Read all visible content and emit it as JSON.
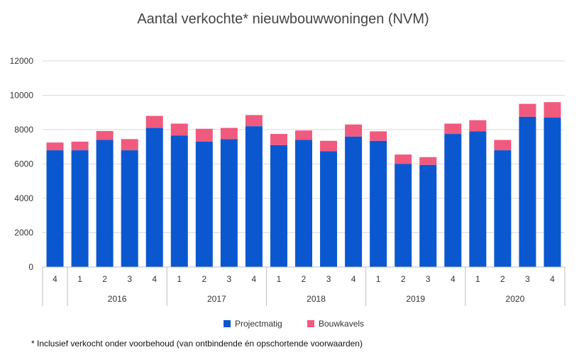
{
  "chart_data": {
    "type": "bar",
    "stacked": true,
    "title": "Aantal verkochte* nieuwbouwwoningen (NVM)",
    "categories": [
      {
        "quarter": "4",
        "year": ""
      },
      {
        "quarter": "1",
        "year": "2016"
      },
      {
        "quarter": "2",
        "year": "2016"
      },
      {
        "quarter": "3",
        "year": "2016"
      },
      {
        "quarter": "4",
        "year": "2016"
      },
      {
        "quarter": "1",
        "year": "2017"
      },
      {
        "quarter": "2",
        "year": "2017"
      },
      {
        "quarter": "3",
        "year": "2017"
      },
      {
        "quarter": "4",
        "year": "2017"
      },
      {
        "quarter": "1",
        "year": "2018"
      },
      {
        "quarter": "2",
        "year": "2018"
      },
      {
        "quarter": "3",
        "year": "2018"
      },
      {
        "quarter": "4",
        "year": "2018"
      },
      {
        "quarter": "1",
        "year": "2019"
      },
      {
        "quarter": "2",
        "year": "2019"
      },
      {
        "quarter": "3",
        "year": "2019"
      },
      {
        "quarter": "4",
        "year": "2019"
      },
      {
        "quarter": "1",
        "year": "2020"
      },
      {
        "quarter": "2",
        "year": "2020"
      },
      {
        "quarter": "3",
        "year": "2020"
      },
      {
        "quarter": "4",
        "year": "2020"
      }
    ],
    "year_groups": [
      {
        "label": "2016",
        "start": 1,
        "end": 4
      },
      {
        "label": "2017",
        "start": 5,
        "end": 8
      },
      {
        "label": "2018",
        "start": 9,
        "end": 12
      },
      {
        "label": "2019",
        "start": 13,
        "end": 16
      },
      {
        "label": "2020",
        "start": 17,
        "end": 20
      }
    ],
    "series": [
      {
        "name": "Projectmatig",
        "color": "#0B57D0",
        "values": [
          6800,
          6800,
          7400,
          6800,
          8100,
          7650,
          7300,
          7450,
          8200,
          7100,
          7400,
          6750,
          7600,
          7350,
          6000,
          5950,
          7750,
          7900,
          6800,
          8750,
          8700
        ]
      },
      {
        "name": "Bouwkavels",
        "color": "#F05A7E",
        "values": [
          450,
          500,
          520,
          650,
          700,
          700,
          750,
          650,
          650,
          650,
          550,
          600,
          700,
          550,
          550,
          450,
          600,
          650,
          600,
          750,
          900
        ]
      }
    ],
    "ylim": [
      0,
      12000
    ],
    "yticks": [
      0,
      2000,
      4000,
      6000,
      8000,
      10000,
      12000
    ],
    "grid": true,
    "legend_position": "bottom-center"
  },
  "footnote": "* Inclusief verkocht onder voorbehoud (van ontbindende én opschortende voorwaarden)"
}
